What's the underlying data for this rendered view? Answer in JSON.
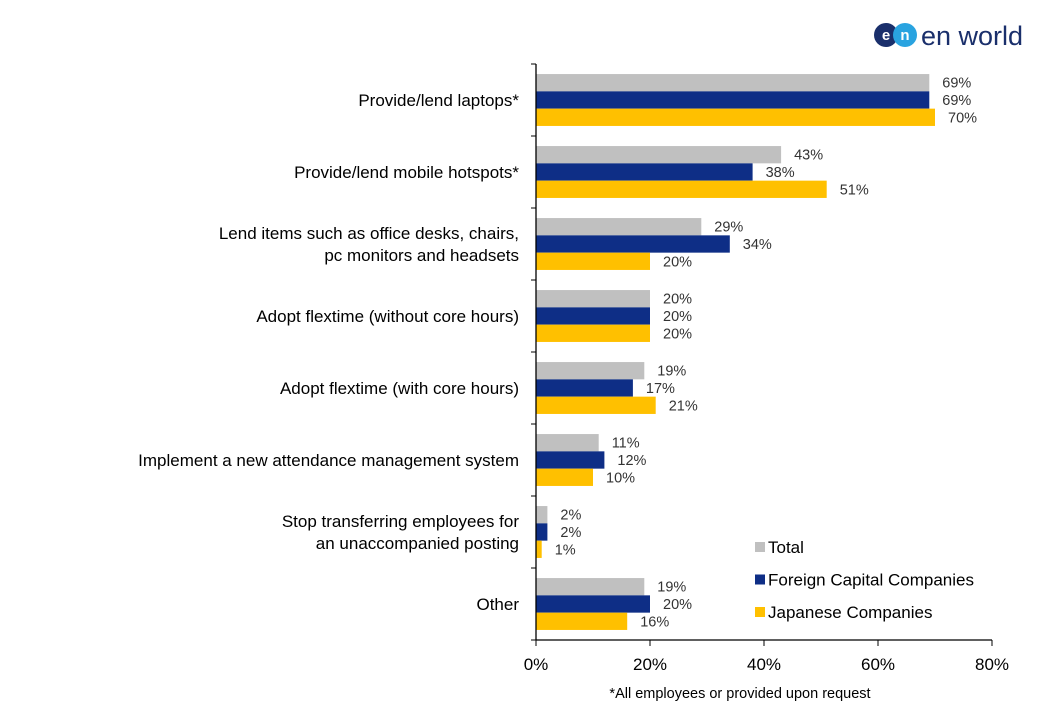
{
  "brand": {
    "logo_mark_1": "e",
    "logo_mark_2": "n",
    "logo_text": "en world"
  },
  "chart_data": {
    "type": "bar",
    "orientation": "horizontal",
    "categories": [
      "Provide/lend laptops*",
      "Provide/lend mobile hotspots*",
      "Lend items such as office desks, chairs,\npc monitors and headsets",
      "Adopt flextime (without core hours)",
      "Adopt flextime (with core hours)",
      "Implement a new attendance management system",
      "Stop transferring employees for\nan unaccompanied posting",
      "Other"
    ],
    "series": [
      {
        "name": "Total",
        "color": "#c0c0c0",
        "values": [
          69,
          43,
          29,
          20,
          19,
          11,
          2,
          19
        ]
      },
      {
        "name": "Foreign Capital Companies",
        "color": "#0e2e86",
        "values": [
          69,
          38,
          34,
          20,
          17,
          12,
          2,
          20
        ]
      },
      {
        "name": "Japanese Companies",
        "color": "#ffc000",
        "values": [
          70,
          51,
          20,
          20,
          21,
          10,
          1,
          16
        ]
      }
    ],
    "xlim": [
      0,
      80
    ],
    "x_ticks": [
      0,
      20,
      40,
      60,
      80
    ],
    "x_tick_labels": [
      "0%",
      "20%",
      "40%",
      "60%",
      "80%"
    ],
    "value_suffix": "%",
    "legend_position": "bottom-right",
    "grid": false,
    "note": "*All employees or provided upon request"
  }
}
